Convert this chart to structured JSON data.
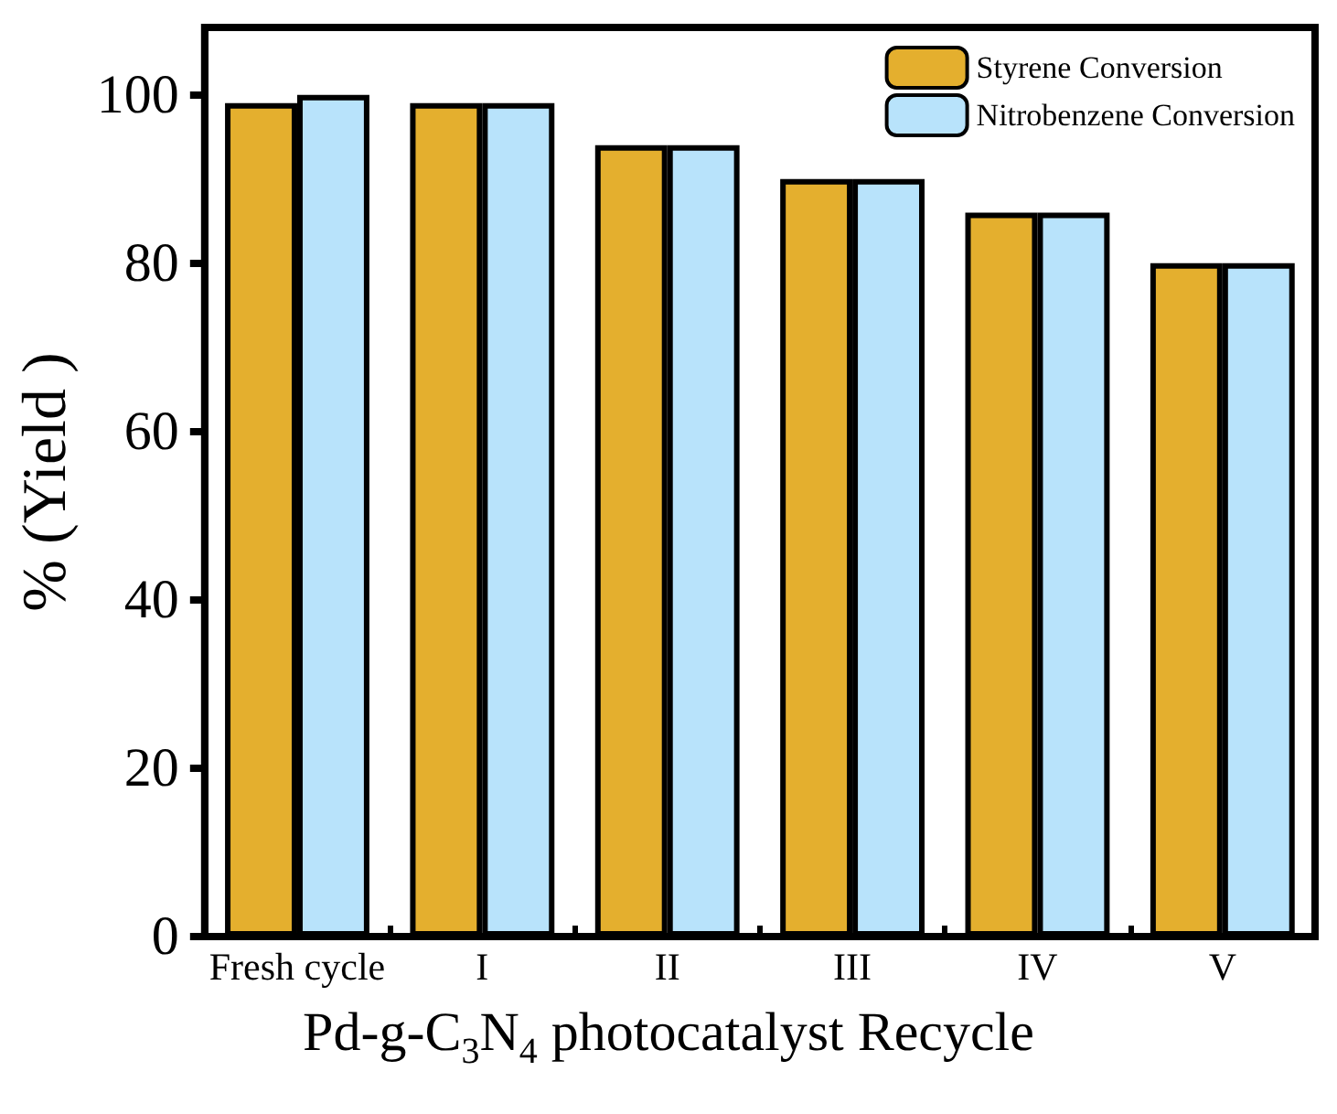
{
  "chart_data": {
    "type": "bar",
    "xlabel": "Pd-g-C$_{3}$N$_{4}$ photocatalyst Recycle",
    "ylabel": "% (Yield )",
    "categories": [
      "Fresh cycle",
      "I",
      "II",
      "III",
      "IV",
      "V"
    ],
    "series": [
      {
        "name": "Styrene Conversion",
        "color": "#e4af2e",
        "values": [
          99,
          99,
          94,
          90,
          86,
          80
        ]
      },
      {
        "name": "Nitrobenzene Conversion",
        "color": "#b8e3fb",
        "values": [
          100,
          99,
          94,
          90,
          86,
          80
        ]
      }
    ],
    "ylim": [
      0,
      108
    ],
    "yticks": [
      0,
      20,
      40,
      60,
      80,
      100
    ],
    "grid": false,
    "legend": "top right"
  }
}
